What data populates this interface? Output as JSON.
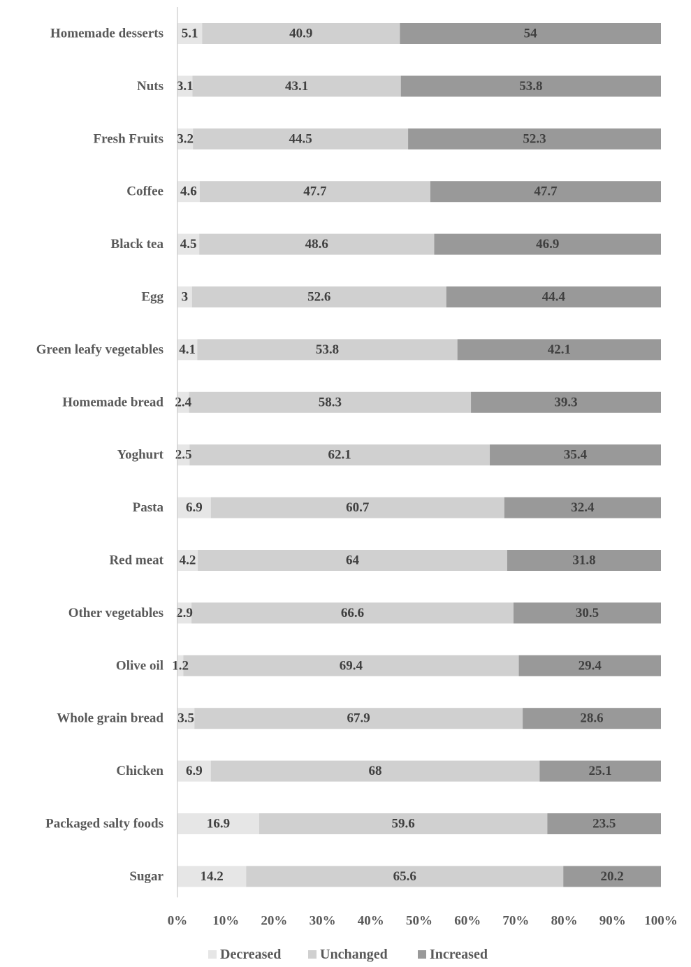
{
  "chart_data": {
    "type": "bar",
    "orientation": "horizontal",
    "stacked": "percent",
    "title": "",
    "xlabel": "",
    "ylabel": "",
    "xlim": [
      0,
      100
    ],
    "x_ticks": [
      "0%",
      "10%",
      "20%",
      "30%",
      "40%",
      "50%",
      "60%",
      "70%",
      "80%",
      "90%",
      "100%"
    ],
    "grid": false,
    "legend_position": "bottom",
    "categories": [
      "Homemade desserts",
      "Nuts",
      "Fresh Fruits",
      "Coffee",
      "Black tea",
      "Egg",
      "Green leafy vegetables",
      "Homemade bread",
      "Yoghurt",
      "Pasta",
      "Red meat",
      "Other vegetables",
      "Olive oil",
      "Whole grain bread",
      "Chicken",
      "Packaged salty foods",
      "Sugar"
    ],
    "series": [
      {
        "name": "Decreased",
        "color": "#e6e6e6",
        "values": [
          5.1,
          3.1,
          3.2,
          4.6,
          4.5,
          3,
          4.1,
          2.4,
          2.5,
          6.9,
          4.2,
          2.9,
          1.2,
          3.5,
          6.9,
          16.9,
          14.2
        ],
        "labels": [
          "5.1",
          "3.1",
          "3.2",
          "4.6",
          "4.5",
          "3",
          "4.1",
          "2.4",
          "2.5",
          "6.9",
          "4.2",
          "2.9",
          "1.2",
          "3.5",
          "6.9",
          "16.9",
          "14.2"
        ]
      },
      {
        "name": "Unchanged",
        "color": "#d0d0d0",
        "values": [
          40.9,
          43.1,
          44.5,
          47.7,
          48.6,
          52.6,
          53.8,
          58.3,
          62.1,
          60.7,
          64,
          66.6,
          69.4,
          67.9,
          68,
          59.6,
          65.6
        ],
        "labels": [
          "40.9",
          "43.1",
          "44.5",
          "47.7",
          "48.6",
          "52.6",
          "53.8",
          "58.3",
          "62.1",
          "60.7",
          "64",
          "66.6",
          "69.4",
          "67.9",
          "68",
          "59.6",
          "65.6"
        ]
      },
      {
        "name": "Increased",
        "color": "#999999",
        "values": [
          54,
          53.8,
          52.3,
          47.7,
          46.9,
          44.4,
          42.1,
          39.3,
          35.4,
          32.4,
          31.8,
          30.5,
          29.4,
          28.6,
          25.1,
          23.5,
          20.2
        ],
        "labels": [
          "54",
          "53.8",
          "52.3",
          "47.7",
          "46.9",
          "44.4",
          "42.1",
          "39.3",
          "35.4",
          "32.4",
          "31.8",
          "30.5",
          "29.4",
          "28.6",
          "25.1",
          "23.5",
          "20.2"
        ]
      }
    ]
  }
}
